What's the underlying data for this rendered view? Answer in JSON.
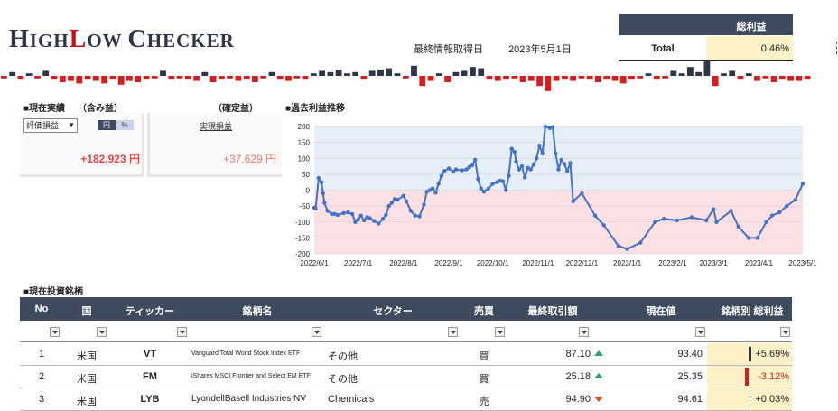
{
  "header": {
    "logo": {
      "h": "H",
      "igh": "IGH",
      "l": "L",
      "ow": "OW ",
      "c": "C",
      "hecker": "HECKER"
    },
    "update_label": "最終情報取得日",
    "update_date": "2023年5月1日",
    "total_profit_header": "総利益",
    "total_label": "Total",
    "total_value": "0.46%"
  },
  "mini_bars": [
    -2,
    3,
    -3,
    2,
    -2,
    4,
    -3,
    -5,
    -4,
    -6,
    -3,
    -4,
    -6,
    -3,
    -7,
    -4,
    -5,
    -3,
    -2,
    4,
    -3,
    -2,
    -3,
    -4,
    3,
    -5,
    -3,
    -2,
    -4,
    -3,
    -5,
    -2,
    3,
    -3,
    -4,
    -2,
    -3,
    2,
    4,
    3,
    5,
    2,
    3,
    -3,
    4,
    5,
    6,
    2,
    -2,
    8,
    -8,
    -4,
    2,
    -5,
    3,
    4,
    7,
    6,
    -3,
    -4,
    -3,
    -2,
    -5,
    -4,
    -8,
    -12,
    -4,
    -3,
    -4,
    -2,
    -3,
    -5,
    -3,
    -4,
    -6,
    -3,
    -2,
    2,
    -3,
    -2,
    4,
    2,
    7,
    3,
    12,
    -8,
    2,
    4,
    -3,
    2,
    -4,
    -2,
    -5,
    -3,
    -4,
    -4,
    -3
  ],
  "current": {
    "heading": "■現在実績",
    "heading_sub": "（含み益）",
    "realized_heading": "（確定益）",
    "select_value": "評価損益",
    "toggle_yen": "円",
    "toggle_pct": "%",
    "realized_link": "実現損益",
    "unrealized_amount": "+182,923 円",
    "realized_amount": "+37,629 円"
  },
  "history": {
    "heading": "■過去利益推移"
  },
  "chart_data": {
    "type": "line",
    "title": "",
    "xlabel": "",
    "ylabel": "",
    "ylim": [
      -200,
      200
    ],
    "yticks": [
      -200,
      -150,
      -100,
      -50,
      0,
      50,
      100,
      150,
      200
    ],
    "x_tick_labels": [
      "2022/6/1",
      "2022/7/1",
      "2022/8/1",
      "2022/9/1",
      "2022/10/1",
      "2022/11/1",
      "2022/12/1",
      "2023/1/1",
      "2023/2/1",
      "2023/3/1",
      "2023/4/1",
      "2023/5/1"
    ],
    "x_ticks": [
      "2022-06-01",
      "2022-07-01",
      "2022-08-01",
      "2022-09-01",
      "2022-10-01",
      "2022-11-01",
      "2022-12-01",
      "2023-01-01",
      "2023-02-01",
      "2023-03-01",
      "2023-04-01",
      "2023-05-01"
    ],
    "x_range": [
      "2022-06-01",
      "2023-05-01"
    ],
    "background": {
      "positive": "#e6eef8",
      "negative": "#fbe0e4"
    },
    "grid": true,
    "series": [
      {
        "color": "#4472c4",
        "points": [
          [
            "2022-06-01",
            -55
          ],
          [
            "2022-06-02",
            -58
          ],
          [
            "2022-06-04",
            38
          ],
          [
            "2022-06-06",
            25
          ],
          [
            "2022-06-07",
            -10
          ],
          [
            "2022-06-08",
            -40
          ],
          [
            "2022-06-10",
            -65
          ],
          [
            "2022-06-13",
            -75
          ],
          [
            "2022-06-15",
            -75
          ],
          [
            "2022-06-17",
            -78
          ],
          [
            "2022-06-21",
            -72
          ],
          [
            "2022-06-24",
            -70
          ],
          [
            "2022-06-27",
            -75
          ],
          [
            "2022-06-29",
            -100
          ],
          [
            "2022-07-01",
            -92
          ],
          [
            "2022-07-03",
            -80
          ],
          [
            "2022-07-05",
            -95
          ],
          [
            "2022-07-07",
            -85
          ],
          [
            "2022-07-09",
            -88
          ],
          [
            "2022-07-12",
            -97
          ],
          [
            "2022-07-15",
            -105
          ],
          [
            "2022-07-18",
            -90
          ],
          [
            "2022-07-20",
            -78
          ],
          [
            "2022-07-22",
            -50
          ],
          [
            "2022-07-24",
            -40
          ],
          [
            "2022-07-26",
            -28
          ],
          [
            "2022-07-28",
            -30
          ],
          [
            "2022-08-01",
            -18
          ],
          [
            "2022-08-03",
            -35
          ],
          [
            "2022-08-06",
            -65
          ],
          [
            "2022-08-09",
            -80
          ],
          [
            "2022-08-12",
            -82
          ],
          [
            "2022-08-15",
            -45
          ],
          [
            "2022-08-17",
            -5
          ],
          [
            "2022-08-19",
            0
          ],
          [
            "2022-08-21",
            5
          ],
          [
            "2022-08-23",
            -8
          ],
          [
            "2022-08-25",
            20
          ],
          [
            "2022-08-27",
            45
          ],
          [
            "2022-08-29",
            60
          ],
          [
            "2022-09-01",
            68
          ],
          [
            "2022-09-04",
            58
          ],
          [
            "2022-09-06",
            65
          ],
          [
            "2022-09-10",
            62
          ],
          [
            "2022-09-13",
            65
          ],
          [
            "2022-09-15",
            72
          ],
          [
            "2022-09-17",
            78
          ],
          [
            "2022-09-19",
            95
          ],
          [
            "2022-09-21",
            35
          ],
          [
            "2022-09-23",
            5
          ],
          [
            "2022-09-25",
            -5
          ],
          [
            "2022-09-28",
            5
          ],
          [
            "2022-10-01",
            20
          ],
          [
            "2022-10-04",
            25
          ],
          [
            "2022-10-06",
            30
          ],
          [
            "2022-10-08",
            28
          ],
          [
            "2022-10-10",
            0
          ],
          [
            "2022-10-12",
            45
          ],
          [
            "2022-10-14",
            130
          ],
          [
            "2022-10-16",
            120
          ],
          [
            "2022-10-17",
            90
          ],
          [
            "2022-10-19",
            65
          ],
          [
            "2022-10-21",
            75
          ],
          [
            "2022-10-23",
            40
          ],
          [
            "2022-10-25",
            70
          ],
          [
            "2022-10-27",
            65
          ],
          [
            "2022-10-29",
            80
          ],
          [
            "2022-10-31",
            100
          ],
          [
            "2022-11-02",
            140
          ],
          [
            "2022-11-04",
            115
          ],
          [
            "2022-11-06",
            200
          ],
          [
            "2022-11-09",
            195
          ],
          [
            "2022-11-11",
            198
          ],
          [
            "2022-11-13",
            115
          ],
          [
            "2022-11-15",
            65
          ],
          [
            "2022-11-17",
            95
          ],
          [
            "2022-11-19",
            82
          ],
          [
            "2022-11-21",
            60
          ],
          [
            "2022-11-23",
            85
          ],
          [
            "2022-11-25",
            -35
          ],
          [
            "2022-12-01",
            -10
          ],
          [
            "2022-12-10",
            -80
          ],
          [
            "2022-12-16",
            -110
          ],
          [
            "2022-12-26",
            -175
          ],
          [
            "2023-01-01",
            -185
          ],
          [
            "2023-01-10",
            -165
          ],
          [
            "2023-01-20",
            -100
          ],
          [
            "2023-01-26",
            -90
          ],
          [
            "2023-02-04",
            -95
          ],
          [
            "2023-02-14",
            -85
          ],
          [
            "2023-02-24",
            -95
          ],
          [
            "2023-03-01",
            -60
          ],
          [
            "2023-03-03",
            -100
          ],
          [
            "2023-03-13",
            -65
          ],
          [
            "2023-03-18",
            -115
          ],
          [
            "2023-03-25",
            -150
          ],
          [
            "2023-03-31",
            -150
          ],
          [
            "2023-04-06",
            -100
          ],
          [
            "2023-04-10",
            -80
          ],
          [
            "2023-04-15",
            -70
          ],
          [
            "2023-04-20",
            -50
          ],
          [
            "2023-04-26",
            -30
          ],
          [
            "2023-05-01",
            20
          ]
        ]
      }
    ]
  },
  "holdings": {
    "heading": "■現在投資銘柄",
    "columns": [
      "No",
      "国",
      "ティッカー",
      "銘柄名",
      "セクター",
      "売買",
      "最終取引額",
      "現在値",
      "銘柄別 総利益"
    ],
    "rows": [
      {
        "no": "1",
        "country": "米国",
        "ticker": "VT",
        "name": "Vanguard Total World Stock Index ETF",
        "sector": "その他",
        "side": "買",
        "last": "87.10",
        "trend": "up",
        "current": "93.40",
        "profit": "+5.69%",
        "profit_color": "#222222"
      },
      {
        "no": "2",
        "country": "米国",
        "ticker": "FM",
        "name": "iShares MSCI Frontier and Select EM ETF",
        "sector": "その他",
        "side": "買",
        "last": "25.18",
        "trend": "up",
        "current": "25.35",
        "profit": "-3.12%",
        "profit_color": "#d31f1f"
      },
      {
        "no": "3",
        "country": "米国",
        "ticker": "LYB",
        "name": "LyondellBasell Industries NV",
        "sector": "Chemicals",
        "side": "売",
        "last": "94.90",
        "trend": "down",
        "current": "94.61",
        "profit": "+0.03%",
        "profit_color": "#222222"
      }
    ]
  },
  "colors": {
    "accent": "#3e4a5e",
    "highlight": "#fdf1c8",
    "negative": "#d31f1f",
    "positive_bar": "#2e3547",
    "up": "#2e9e74",
    "down": "#d0501e"
  }
}
